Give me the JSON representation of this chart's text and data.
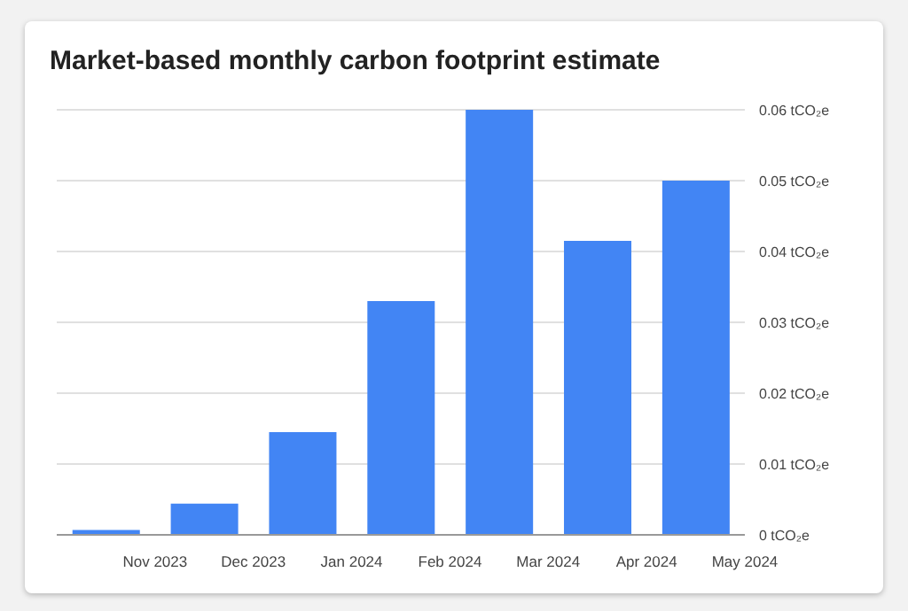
{
  "chart_data": {
    "type": "bar",
    "title": "Market-based monthly carbon footprint estimate",
    "categories": [
      "Nov 2023",
      "Dec 2023",
      "Jan 2024",
      "Feb 2024",
      "Mar 2024",
      "Apr 2024",
      "May 2024"
    ],
    "values": [
      0.0007,
      0.0044,
      0.0145,
      0.033,
      0.06,
      0.0415,
      0.05
    ],
    "color": "#4285f4",
    "ylim": [
      0,
      0.06
    ],
    "yticks": [
      {
        "value": 0,
        "label": "0 tCO₂e"
      },
      {
        "value": 0.01,
        "label": "0.01 tCO₂e"
      },
      {
        "value": 0.02,
        "label": "0.02 tCO₂e"
      },
      {
        "value": 0.03,
        "label": "0.03 tCO₂e"
      },
      {
        "value": 0.04,
        "label": "0.04 tCO₂e"
      },
      {
        "value": 0.05,
        "label": "0.05 tCO₂e"
      },
      {
        "value": 0.06,
        "label": "0.06 tCO₂e"
      }
    ],
    "grid": "y"
  }
}
